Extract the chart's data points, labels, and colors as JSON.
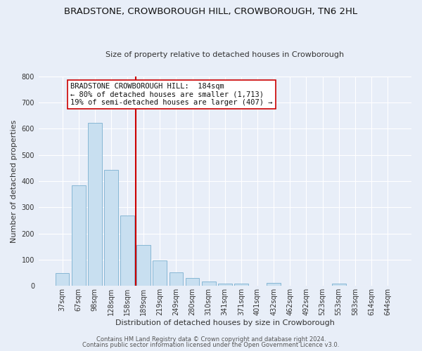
{
  "title": "BRADSTONE, CROWBOROUGH HILL, CROWBOROUGH, TN6 2HL",
  "subtitle": "Size of property relative to detached houses in Crowborough",
  "xlabel": "Distribution of detached houses by size in Crowborough",
  "ylabel": "Number of detached properties",
  "bar_labels": [
    "37sqm",
    "67sqm",
    "98sqm",
    "128sqm",
    "158sqm",
    "189sqm",
    "219sqm",
    "249sqm",
    "280sqm",
    "310sqm",
    "341sqm",
    "371sqm",
    "401sqm",
    "432sqm",
    "462sqm",
    "492sqm",
    "523sqm",
    "553sqm",
    "583sqm",
    "614sqm",
    "644sqm"
  ],
  "bar_values": [
    50,
    385,
    623,
    443,
    268,
    157,
    97,
    52,
    30,
    18,
    10,
    10,
    0,
    12,
    0,
    0,
    0,
    8,
    0,
    0,
    0
  ],
  "bar_color": "#c8dff0",
  "bar_edge_color": "#7ab0d0",
  "vline_x_index": 5,
  "vline_color": "#cc0000",
  "annotation_title": "BRADSTONE CROWBOROUGH HILL:  184sqm",
  "annotation_line1": "← 80% of detached houses are smaller (1,713)",
  "annotation_line2": "19% of semi-detached houses are larger (407) →",
  "ylim": [
    0,
    800
  ],
  "yticks": [
    0,
    100,
    200,
    300,
    400,
    500,
    600,
    700,
    800
  ],
  "footer1": "Contains HM Land Registry data © Crown copyright and database right 2024.",
  "footer2": "Contains public sector information licensed under the Open Government Licence v3.0.",
  "bg_color": "#e8eef8",
  "plot_bg_color": "#e8eef8",
  "grid_color": "#ffffff",
  "title_fontsize": 9.5,
  "subtitle_fontsize": 8,
  "axis_label_fontsize": 8,
  "tick_fontsize": 7,
  "ann_fontsize": 7.5,
  "footer_fontsize": 6
}
